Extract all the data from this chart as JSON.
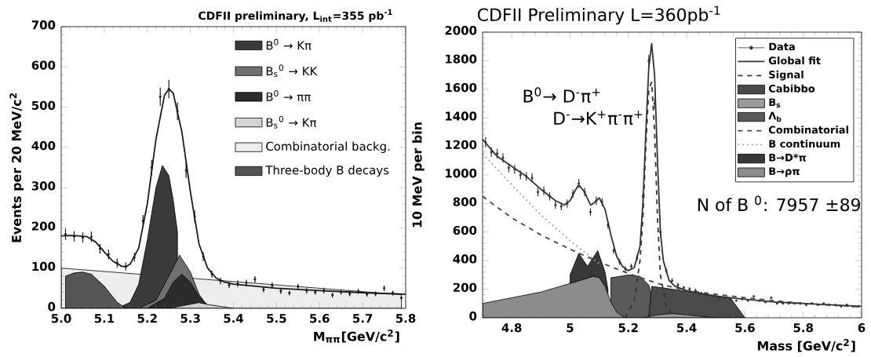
{
  "chart_data": [
    {
      "type": "area",
      "title": "CDFII preliminary, L$_{int}$=355 pb$^{-1}$",
      "xlabel": "M$_{ππ}$[GeV/c$^{2}$]",
      "ylabel": "Events per 20 MeV/c$^{2}$",
      "xlim": [
        5.0,
        5.8
      ],
      "ylim": [
        0,
        700
      ],
      "xticks": [
        {
          "value": 5,
          "label": "5.0"
        },
        5.1,
        5.2,
        5.3,
        5.4,
        5.5,
        5.6,
        5.7,
        5.8
      ],
      "yticks": [
        0,
        100,
        200,
        300,
        400,
        500,
        600,
        700
      ],
      "legend": "top right",
      "series": [
        {
          "name": "B$^{0}$ → Kπ",
          "color": "#3a3a3a",
          "x": [
            5.13,
            5.16,
            5.18,
            5.2,
            5.22,
            5.235,
            5.25,
            5.26,
            5.27
          ],
          "values": [
            0,
            15,
            60,
            170,
            300,
            355,
            330,
            270,
            190
          ]
        },
        {
          "name": "B$_{s}$$^{0}$ → KK",
          "color": "#707070",
          "x": [
            5.18,
            5.22,
            5.25,
            5.275,
            5.3,
            5.32,
            5.34,
            5.36
          ],
          "values": [
            0,
            20,
            80,
            132,
            90,
            35,
            5,
            0
          ]
        },
        {
          "name": "B$^{0}$ → ππ",
          "color": "#2c2c2c",
          "x": [
            5.2,
            5.24,
            5.26,
            5.28,
            5.3,
            5.32,
            5.34,
            5.36
          ],
          "values": [
            0,
            25,
            65,
            85,
            65,
            30,
            8,
            0
          ]
        },
        {
          "name": "B$_{s}$$^{0}$ → Kπ",
          "color": "#d4d4d4",
          "x": [
            5.25,
            5.3,
            5.32,
            5.35,
            5.4
          ],
          "values": [
            0,
            10,
            14,
            8,
            0
          ]
        },
        {
          "name": "Combinatorial backg.",
          "color": "#ededed",
          "x": [
            5.0,
            5.79
          ],
          "values": [
            100,
            34
          ]
        },
        {
          "name": "Three-body B decays",
          "color": "#555555",
          "x": [
            5.01,
            5.01,
            5.03,
            5.05,
            5.07,
            5.1,
            5.13,
            5.15
          ],
          "values": [
            0,
            80,
            88,
            90,
            85,
            55,
            15,
            0
          ]
        },
        {
          "type": "line",
          "color": "#1a1a1a",
          "x": [
            5.0,
            5.02,
            5.04,
            5.06,
            5.08,
            5.1,
            5.12,
            5.14,
            5.15,
            5.16,
            5.18,
            5.2,
            5.22,
            5.24,
            5.25,
            5.26,
            5.28,
            5.3,
            5.32,
            5.34,
            5.36,
            5.38,
            5.4,
            5.5,
            5.6,
            5.7,
            5.8
          ],
          "values": [
            180,
            181,
            180,
            178,
            165,
            140,
            117,
            105,
            103,
            110,
            150,
            260,
            420,
            530,
            545,
            535,
            440,
            290,
            160,
            100,
            75,
            65,
            60,
            50,
            44,
            39,
            35
          ]
        },
        {
          "type": "scatter",
          "marker": "circle",
          "color": "#1a1a1a",
          "x": [
            5.01,
            5.03,
            5.05,
            5.07,
            5.09,
            5.11,
            5.13,
            5.15,
            5.17,
            5.19,
            5.21,
            5.23,
            5.25,
            5.27,
            5.29,
            5.31,
            5.33,
            5.35,
            5.37,
            5.39,
            5.41,
            5.43,
            5.45,
            5.47,
            5.49,
            5.51,
            5.53,
            5.55,
            5.57,
            5.59,
            5.61,
            5.63,
            5.65,
            5.67,
            5.69,
            5.71,
            5.73,
            5.75,
            5.77,
            5.79
          ],
          "values": [
            184,
            179,
            176,
            178,
            148,
            134,
            113,
            104,
            127,
            217,
            350,
            526,
            545,
            490,
            343,
            228,
            129,
            85,
            68,
            58,
            61,
            63,
            72,
            47,
            57,
            43,
            38,
            54,
            44,
            40,
            44,
            33,
            40,
            36,
            42,
            35,
            36,
            50,
            38,
            26
          ],
          "errors": [
            14,
            13,
            13,
            13,
            12,
            12,
            11,
            10,
            11,
            15,
            19,
            23,
            23,
            22,
            19,
            15,
            11,
            9,
            8,
            8,
            8,
            8,
            8,
            7,
            8,
            7,
            6,
            7,
            7,
            6,
            7,
            6,
            6,
            6,
            6,
            6,
            6,
            7,
            6,
            5
          ]
        }
      ]
    },
    {
      "type": "area",
      "title": "CDFII Preliminary   L=360pb$^{-1}$",
      "xlabel": "Mass [GeV/c$^{2}$]",
      "ylabel": "10 MeV per bin",
      "xlim": [
        4.7,
        6
      ],
      "ylim": [
        0,
        2000
      ],
      "xticks": [
        4.8,
        5,
        5.2,
        5.4,
        5.6,
        5.8,
        6
      ],
      "yticks": [
        0,
        200,
        400,
        600,
        800,
        1000,
        1200,
        1400,
        1600,
        1800,
        2000
      ],
      "legend": "top right",
      "annotations": [
        "B$^{0}$→ D$^{-}$π$^{+}$",
        "D$^{-}$→K$^{+}$π$^{-}$π$^{+}$",
        "N of B $^{0}$: 7957  ±89"
      ],
      "series": [
        {
          "name": "Data",
          "type": "scatter",
          "marker": "circle",
          "color": "#333333",
          "x": [
            4.71,
            4.73,
            4.75,
            4.77,
            4.79,
            4.81,
            4.83,
            4.85,
            4.87,
            4.89,
            4.91,
            4.93,
            4.95,
            4.97,
            4.99,
            5.01,
            5.03,
            5.05,
            5.07,
            5.09,
            5.11,
            5.13,
            5.15,
            5.17,
            5.19,
            5.21,
            5.23,
            5.25,
            5.27,
            5.29,
            5.31,
            5.33,
            5.35,
            5.37,
            5.39,
            5.41,
            5.43,
            5.45,
            5.47,
            5.49,
            5.51,
            5.53,
            5.55,
            5.57,
            5.59,
            5.61,
            5.63,
            5.65,
            5.67,
            5.69,
            5.71,
            5.73,
            5.75,
            5.77,
            5.79,
            5.81,
            5.83,
            5.85,
            5.87,
            5.89,
            5.91,
            5.93,
            5.95,
            5.97,
            5.99
          ],
          "values": [
            1230,
            1160,
            1150,
            1120,
            1050,
            1040,
            1000,
            990,
            980,
            880,
            890,
            850,
            790,
            780,
            800,
            870,
            940,
            880,
            740,
            820,
            810,
            650,
            470,
            390,
            340,
            360,
            420,
            850,
            1800,
            1500,
            600,
            330,
            260,
            230,
            210,
            200,
            190,
            170,
            160,
            150,
            140,
            140,
            130,
            120,
            130,
            120,
            150,
            120,
            110,
            140,
            100,
            100,
            100,
            100,
            100,
            90,
            100,
            90,
            100,
            90,
            90,
            80,
            90,
            80,
            80
          ],
          "errors": [
            35,
            34,
            34,
            33,
            32,
            32,
            32,
            31,
            31,
            30,
            30,
            29,
            28,
            28,
            28,
            29,
            31,
            30,
            27,
            29,
            28,
            25,
            22,
            20,
            18,
            19,
            20,
            29,
            42,
            39,
            24,
            18,
            16,
            15,
            14,
            14,
            14,
            13,
            13,
            null,
            null,
            null,
            null,
            null,
            null,
            null,
            null,
            null,
            null,
            null,
            null,
            null,
            null,
            null,
            null,
            null,
            null,
            null,
            null,
            null,
            null,
            null,
            null,
            null,
            null
          ]
        },
        {
          "name": "Global fit",
          "type": "line",
          "color": "#333333",
          "x": [
            4.7,
            4.75,
            4.8,
            4.85,
            4.9,
            4.95,
            4.98,
            5.0,
            5.02,
            5.03,
            5.05,
            5.07,
            5.08,
            5.1,
            5.12,
            5.14,
            5.16,
            5.18,
            5.2,
            5.22,
            5.24,
            5.25,
            5.26,
            5.27,
            5.28,
            5.29,
            5.3,
            5.31,
            5.32,
            5.34,
            5.36,
            5.4,
            5.5,
            5.6,
            5.7,
            5.8,
            5.9,
            6.0
          ],
          "values": [
            1250,
            1130,
            1060,
            990,
            900,
            820,
            790,
            820,
            900,
            930,
            880,
            790,
            800,
            840,
            760,
            580,
            430,
            360,
            330,
            350,
            500,
            800,
            1300,
            1750,
            1920,
            1700,
            1100,
            600,
            400,
            260,
            220,
            190,
            150,
            130,
            110,
            100,
            90,
            80
          ]
        },
        {
          "name": "Signal",
          "type": "line",
          "line_style": "dashed",
          "color": "#333333",
          "x": [
            5.19,
            5.22,
            5.24,
            5.25,
            5.26,
            5.27,
            5.28,
            5.29,
            5.3,
            5.31,
            5.33,
            5.36
          ],
          "values": [
            0,
            120,
            400,
            700,
            1200,
            1600,
            1650,
            1300,
            700,
            300,
            80,
            0
          ]
        },
        {
          "name": "Cabibbo",
          "color": "#4a4a4a",
          "x": [
            5.27,
            5.28,
            5.35,
            5.45,
            5.55,
            5.6
          ],
          "values": [
            0,
            220,
            200,
            170,
            140,
            0
          ]
        },
        {
          "name": "B$_{s}$",
          "color": "#9a9a9a",
          "x": [
            5.25,
            5.3,
            5.35,
            5.4,
            5.5
          ],
          "values": [
            0,
            20,
            30,
            20,
            0
          ]
        },
        {
          "name": "Λ$_{b}$",
          "color": "#5a5a5a",
          "x": [
            5.14,
            5.2,
            5.24,
            5.27,
            5.3
          ],
          "values": [
            280,
            300,
            290,
            230,
            0
          ]
        },
        {
          "name": "Combinatorial",
          "type": "line",
          "line_style": "dashed",
          "color": "#444444",
          "x": [
            4.7,
            4.8,
            4.9,
            5.0,
            5.1,
            5.2,
            5.3,
            5.4,
            5.6,
            5.8,
            6.0
          ],
          "values": [
            850,
            700,
            580,
            480,
            390,
            310,
            240,
            190,
            140,
            100,
            75
          ]
        },
        {
          "name": "B continuum",
          "type": "line",
          "line_style": "dotted",
          "color": "#999999",
          "x": [
            4.7,
            4.8,
            4.9,
            5.0,
            5.05,
            5.1
          ],
          "values": [
            1150,
            930,
            720,
            540,
            460,
            380
          ]
        },
        {
          "name": "B→D*π",
          "color": "#383838",
          "x": [
            5.0,
            5.03,
            5.06,
            5.095,
            5.12,
            5.13
          ],
          "values": [
            300,
            450,
            360,
            470,
            320,
            200
          ]
        },
        {
          "name": "B→ρπ",
          "color": "#8c8c8c",
          "x": [
            4.7,
            4.8,
            4.9,
            5.0,
            5.05,
            5.08,
            5.1,
            5.12,
            5.14,
            5.16,
            5.18,
            5.2
          ],
          "values": [
            100,
            140,
            180,
            240,
            270,
            290,
            280,
            220,
            110,
            40,
            10,
            0
          ]
        }
      ]
    }
  ]
}
